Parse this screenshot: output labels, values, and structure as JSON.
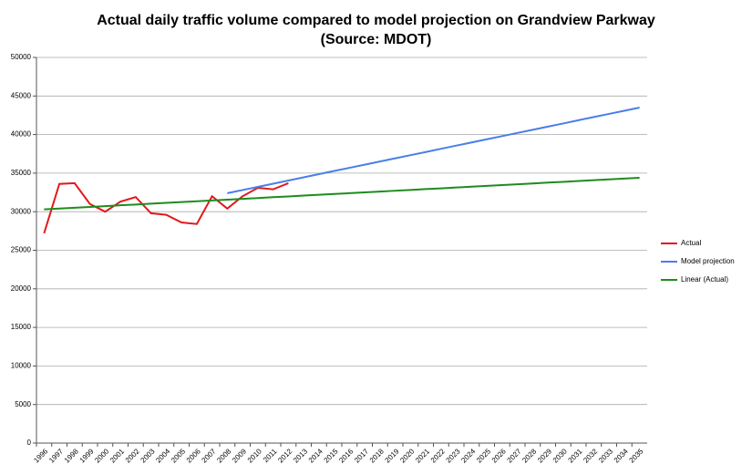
{
  "chart_data": {
    "type": "line",
    "title": "Actual daily traffic volume compared to model projection on Grandview Parkway (Source: MDOT)",
    "categories": [
      "1996",
      "1997",
      "1998",
      "1999",
      "2000",
      "2001",
      "2002",
      "2003",
      "2004",
      "2005",
      "2006",
      "2007",
      "2008",
      "2009",
      "2010",
      "2011",
      "2012",
      "2013",
      "2014",
      "2015",
      "2016",
      "2017",
      "2018",
      "2019",
      "2020",
      "2021",
      "2022",
      "2023",
      "2024",
      "2025",
      "2026",
      "2027",
      "2028",
      "2029",
      "2030",
      "2031",
      "2032",
      "2033",
      "2034",
      "2035"
    ],
    "series": [
      {
        "name": "Actual",
        "color": "#e2181b",
        "values": [
          27200,
          33600,
          33700,
          31000,
          30000,
          31300,
          31900,
          29800,
          29600,
          28600,
          28400,
          32000,
          30400,
          32000,
          33100,
          32900,
          33700,
          null,
          null,
          null,
          null,
          null,
          null,
          null,
          null,
          null,
          null,
          null,
          null,
          null,
          null,
          null,
          null,
          null,
          null,
          null,
          null,
          null,
          null,
          null
        ]
      },
      {
        "name": "Model projection",
        "color": "#4a7ee8",
        "values": [
          null,
          null,
          null,
          null,
          null,
          null,
          null,
          null,
          null,
          null,
          null,
          null,
          32400,
          32810,
          33220,
          33630,
          34040,
          34460,
          34870,
          35280,
          35690,
          36100,
          36510,
          36920,
          37330,
          37740,
          38160,
          38570,
          38980,
          39390,
          39800,
          40210,
          40620,
          41030,
          41440,
          41860,
          42270,
          42680,
          43090,
          43500
        ]
      },
      {
        "name": "Linear (Actual)",
        "color": "#1e8c1e",
        "values": [
          30300,
          30410,
          30510,
          30620,
          30720,
          30830,
          30930,
          31040,
          31140,
          31250,
          31350,
          31460,
          31560,
          31670,
          31770,
          31880,
          31980,
          32090,
          32190,
          32300,
          32400,
          32510,
          32610,
          32720,
          32820,
          32930,
          33030,
          33140,
          33240,
          33350,
          33450,
          33560,
          33660,
          33770,
          33870,
          33980,
          34080,
          34190,
          34290,
          34400
        ]
      }
    ],
    "ylim": [
      0,
      50000
    ],
    "yticks": [
      0,
      5000,
      10000,
      15000,
      20000,
      25000,
      30000,
      35000,
      40000,
      45000,
      50000
    ],
    "grid": true,
    "legend": "right"
  }
}
